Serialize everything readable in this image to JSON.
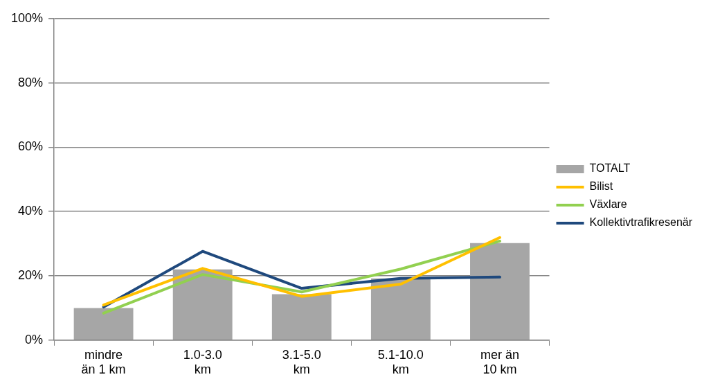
{
  "chart_data": {
    "type": "bar",
    "categories": [
      "mindre än 1 km",
      "1.0-3.0 km",
      "3.1-5.0 km",
      "5.1-10.0 km",
      "mer än 10 km"
    ],
    "series": [
      {
        "name": "TOTALT",
        "color": "#a6a6a6",
        "values": [
          10,
          22,
          14.3,
          19.2,
          30.2
        ]
      },
      {
        "name": "Bilist",
        "type": "line",
        "color": "#ffc000",
        "values": [
          10.9,
          22.3,
          13.6,
          17.4,
          31.9
        ]
      },
      {
        "name": "Växlare",
        "type": "line",
        "color": "#92d050",
        "values": [
          8.4,
          20.4,
          15,
          22.1,
          30.8
        ]
      },
      {
        "name": "Kollektivtrafikresenär",
        "type": "line",
        "color": "#1f497d",
        "values": [
          10.3,
          27.6,
          16.1,
          19.2,
          19.6
        ]
      }
    ],
    "ylim": [
      0,
      100
    ],
    "yticks": [
      {
        "value": 0,
        "label": "0%"
      },
      {
        "value": 20,
        "label": "20%"
      },
      {
        "value": 40,
        "label": "40%"
      },
      {
        "value": 60,
        "label": "60%"
      },
      {
        "value": 80,
        "label": "80%"
      },
      {
        "value": 100,
        "label": "100%"
      }
    ],
    "grid": "y",
    "legend": "right",
    "marker": "none",
    "line_style": "solid"
  }
}
